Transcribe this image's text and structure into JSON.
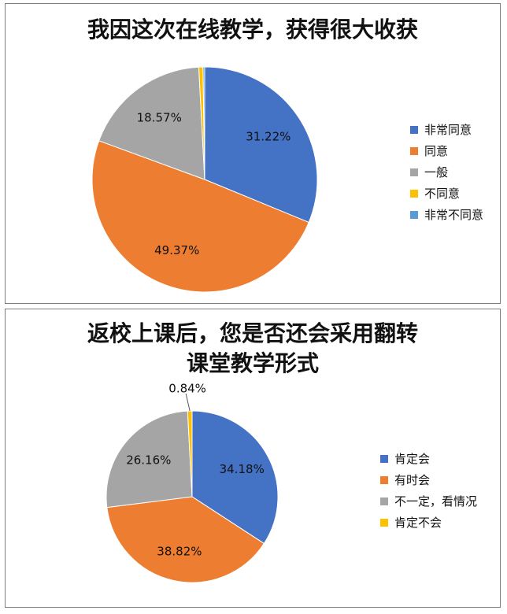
{
  "chart_data": [
    {
      "type": "pie",
      "title": "我因这次在线教学，获得很大收获",
      "legend_position": "right",
      "slices": [
        {
          "label": "非常同意",
          "value": 31.22,
          "display": "31.22%",
          "color": "#4472c4"
        },
        {
          "label": "同意",
          "value": 49.37,
          "display": "49.37%",
          "color": "#ed7d31"
        },
        {
          "label": "一般",
          "value": 18.57,
          "display": "18.57%",
          "color": "#a5a5a5"
        },
        {
          "label": "不同意",
          "value": 0.6,
          "display": "",
          "color": "#ffc000"
        },
        {
          "label": "非常不同意",
          "value": 0.24,
          "display": "",
          "color": "#5b9bd5"
        }
      ]
    },
    {
      "type": "pie",
      "title_lines": [
        "返校上课后，您是否还会采用翻转",
        "课堂教学形式"
      ],
      "legend_position": "right",
      "slices": [
        {
          "label": "肯定会",
          "value": 34.18,
          "display": "34.18%",
          "color": "#4472c4"
        },
        {
          "label": "有时会",
          "value": 38.82,
          "display": "38.82%",
          "color": "#ed7d31"
        },
        {
          "label": "不一定，看情况",
          "value": 26.16,
          "display": "26.16%",
          "color": "#a5a5a5"
        },
        {
          "label": "肯定不会",
          "value": 0.84,
          "display": "0.84%",
          "color": "#ffc000"
        }
      ]
    }
  ]
}
